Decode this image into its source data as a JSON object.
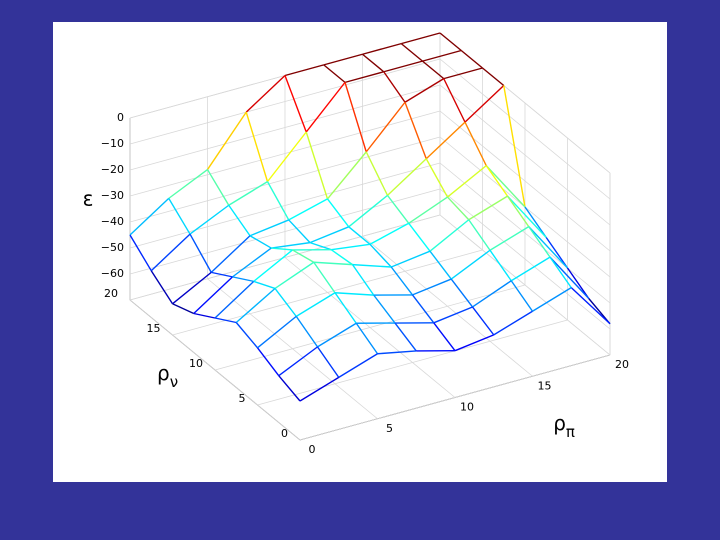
{
  "chart_data": {
    "type": "mesh3d",
    "xlabel": "ρ",
    "xlabel_sub": "π",
    "ylabel": "ρ",
    "ylabel_sub": "ν",
    "zlabel": "ε",
    "x": [
      0,
      2.5,
      5,
      7.5,
      10,
      12.5,
      15,
      17.5,
      20
    ],
    "y": [
      0,
      2.5,
      5,
      7.5,
      10,
      12.5,
      15,
      17.5,
      20
    ],
    "z": [
      [
        -55,
        -50,
        -45,
        -48,
        -52,
        -50,
        -45,
        -40,
        -58
      ],
      [
        -52,
        -45,
        -40,
        -44,
        -48,
        -46,
        -40,
        -35,
        -55
      ],
      [
        -48,
        -40,
        -35,
        -40,
        -44,
        -42,
        -35,
        -30,
        -50
      ],
      [
        -45,
        -36,
        -30,
        -35,
        -40,
        -38,
        -30,
        -25,
        -45
      ],
      [
        -50,
        -40,
        -32,
        -36,
        -38,
        -34,
        -28,
        -20,
        -40
      ],
      [
        -55,
        -45,
        -38,
        -40,
        -38,
        -30,
        -20,
        -10,
        0
      ],
      [
        -58,
        -50,
        -40,
        -38,
        -34,
        -20,
        -5,
        0,
        0
      ],
      [
        -52,
        -42,
        -35,
        -30,
        -15,
        0,
        0,
        0,
        0
      ],
      [
        -45,
        -35,
        -28,
        -10,
        0,
        0,
        0,
        0,
        0
      ]
    ],
    "colormap": "jet",
    "xlim": [
      0,
      20
    ],
    "ylim": [
      0,
      20
    ],
    "zlim": [
      -70,
      0
    ],
    "xticks": [
      0,
      5,
      10,
      15,
      20
    ],
    "yticks": [
      0,
      5,
      10,
      15,
      20
    ],
    "zticks": [
      {
        "value": -60,
        "label": "−60"
      },
      {
        "value": -50,
        "label": "−50"
      },
      {
        "value": -40,
        "label": "−40"
      },
      {
        "value": -30,
        "label": "−30"
      },
      {
        "value": -20,
        "label": "−20"
      },
      {
        "value": -10,
        "label": "−10"
      },
      0
    ],
    "grid": true
  }
}
